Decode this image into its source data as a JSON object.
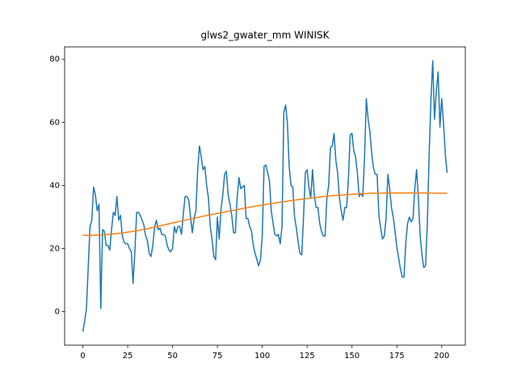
{
  "chart_data": {
    "type": "line",
    "title": "glws2_gwater_mm WINISK",
    "xlim": [
      -10.15,
      213.15
    ],
    "xticks": [
      0,
      25,
      50,
      75,
      100,
      125,
      150,
      175,
      200
    ],
    "ylim": [
      -10.6,
      83.9
    ],
    "yticks": [
      0,
      20,
      40,
      60,
      80
    ],
    "series": [
      {
        "color": "#1f77b4",
        "values": [
          -6.3,
          -3,
          1,
          14,
          27,
          29,
          39.5,
          37,
          32,
          34,
          1,
          26,
          25.5,
          21,
          21,
          19.5,
          26,
          31.5,
          30.5,
          36.5,
          29,
          30.5,
          24,
          22,
          21.5,
          21.5,
          20,
          19,
          9,
          19,
          31.5,
          31.5,
          30.5,
          29,
          27.5,
          24,
          22.5,
          18.5,
          17.5,
          21,
          27,
          29,
          26,
          26.5,
          24.5,
          24.5,
          24,
          21,
          19.5,
          19,
          20,
          27,
          25,
          27,
          27,
          24.5,
          31,
          36.5,
          36.5,
          35.5,
          30,
          25,
          29.5,
          32,
          45,
          52.5,
          49,
          45,
          46,
          40,
          36,
          27,
          23,
          17.5,
          16.5,
          30,
          23,
          32.5,
          37,
          43.5,
          44.5,
          37,
          34,
          30.5,
          25,
          25,
          36,
          42.5,
          39,
          39.5,
          40,
          29.5,
          29.5,
          27,
          25.5,
          21,
          18.5,
          16.5,
          14.5,
          16.5,
          24,
          46,
          46.5,
          44,
          41.5,
          32,
          28,
          24.5,
          24,
          24.5,
          21.5,
          27,
          63,
          65.5,
          60,
          46,
          40,
          39.5,
          30,
          26.5,
          22,
          18.5,
          18,
          30,
          44,
          45,
          39.5,
          36,
          45,
          37,
          33,
          33,
          28,
          25.5,
          24,
          24,
          36,
          40,
          52,
          52.5,
          56.5,
          48,
          44,
          36,
          32,
          29,
          33,
          33,
          42,
          56,
          56.5,
          51,
          49,
          44,
          36.5,
          37.5,
          36.5,
          49,
          67.5,
          61,
          57,
          50,
          45.5,
          43.5,
          43.5,
          30.5,
          26.5,
          23,
          24,
          29.5,
          43.5,
          39,
          33,
          30,
          25.5,
          20.5,
          17,
          13.5,
          11,
          11,
          22,
          28,
          30,
          28.5,
          29.5,
          39,
          45,
          36,
          24,
          18,
          14,
          14.5,
          28,
          50,
          67,
          79.5,
          61,
          70,
          76,
          58.5,
          67.5,
          60,
          50,
          44
        ]
      },
      {
        "color": "#ff7f0e",
        "x": [
          0,
          10,
          20,
          30,
          40,
          50,
          60,
          70,
          80,
          90,
          100,
          110,
          120,
          130,
          140,
          150,
          160,
          170,
          180,
          190,
          200,
          203
        ],
        "values": [
          24.2,
          24.3,
          24.8,
          25.6,
          26.8,
          28.1,
          29.4,
          30.6,
          31.7,
          32.8,
          33.8,
          34.7,
          35.5,
          36.2,
          36.8,
          37.2,
          37.5,
          37.6,
          37.6,
          37.6,
          37.5,
          37.5
        ]
      }
    ]
  }
}
